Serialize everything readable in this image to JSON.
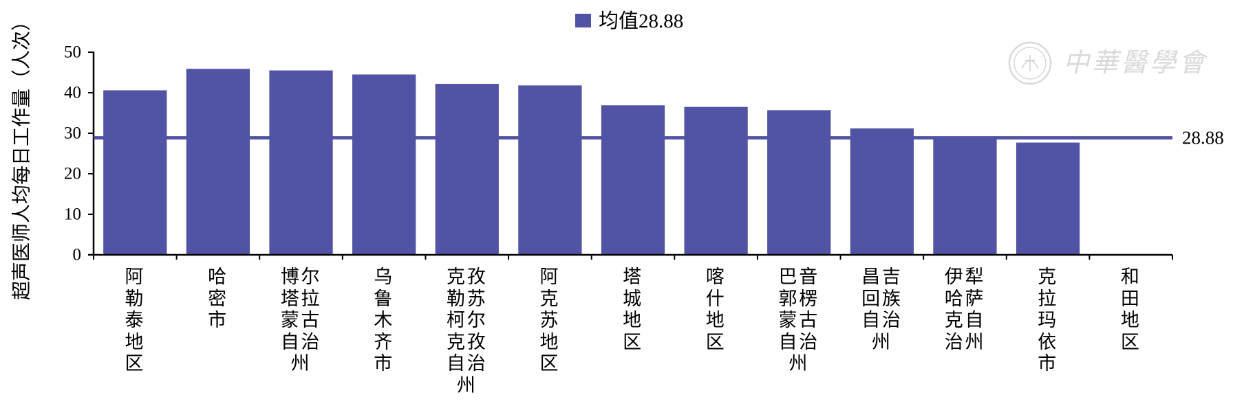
{
  "watermark": {
    "text": "中華醫學會"
  },
  "chart_data": {
    "type": "bar",
    "title": "",
    "xlabel": "",
    "ylabel": "超声医师人均每日工作量（人次）",
    "categories": [
      "阿勒泰地区",
      "哈密市",
      "博尔塔拉蒙古自治州",
      "乌鲁木齐市",
      "克孜勒苏柯尔克孜自治州",
      "阿克苏地区",
      "塔城地区",
      "喀什地区",
      "巴音郭楞蒙古自治州",
      "昌吉回族自治州",
      "伊犁哈萨克自治州",
      "克拉玛依市",
      "和田地区"
    ],
    "series": [
      {
        "name": "均值28.88",
        "values": [
          40.6,
          45.9,
          45.5,
          44.5,
          42.2,
          41.8,
          36.9,
          36.5,
          35.7,
          31.2,
          29.1,
          27.7,
          null
        ]
      }
    ],
    "ylim": [
      0,
      50
    ],
    "yticks": [
      0,
      10,
      20,
      30,
      40,
      50
    ],
    "reference_line": {
      "value": 28.88,
      "label": "28.88"
    },
    "legend": "top-center",
    "grid": false,
    "colors": {
      "bar": "#5153a4",
      "reference_line": "#5153a4",
      "axis": "#000000",
      "watermark": "#d9d9d9"
    }
  }
}
